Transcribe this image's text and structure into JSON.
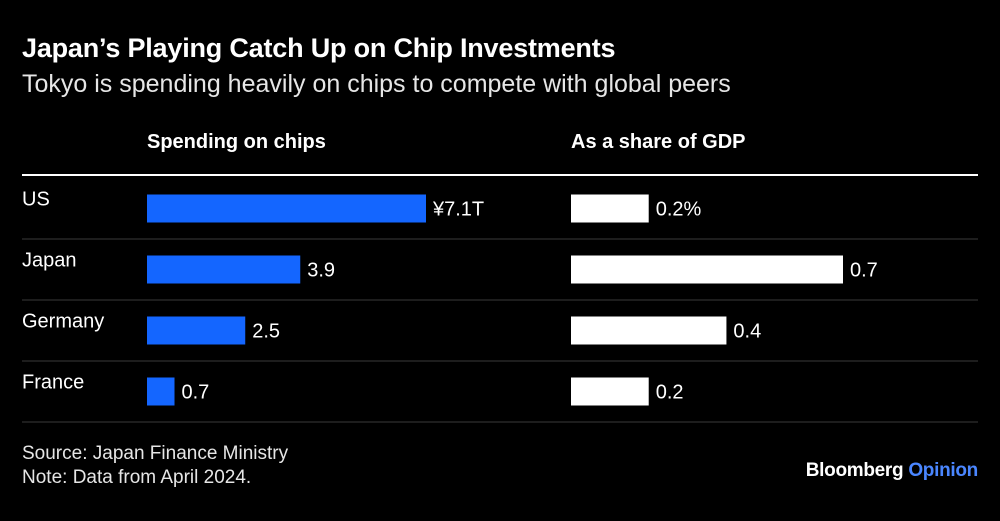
{
  "chart_data": {
    "type": "bar",
    "title": "Japan’s Playing Catch Up on Chip Investments",
    "subtitle": "Tokyo is spending heavily on chips to compete with global peers",
    "categories": [
      "US",
      "Japan",
      "Germany",
      "France"
    ],
    "series": [
      {
        "name": "Spending on chips",
        "values": [
          7.1,
          3.9,
          2.5,
          0.7
        ],
        "labels": [
          "¥7.1T",
          "3.9",
          "2.5",
          "0.7"
        ],
        "unit": "trillion yen",
        "color": "#1466ff",
        "xlim": [
          0,
          7.1
        ]
      },
      {
        "name": "As a share of GDP",
        "values": [
          0.2,
          0.7,
          0.4,
          0.2
        ],
        "labels": [
          "0.2%",
          "0.7",
          "0.4",
          "0.2"
        ],
        "unit": "%",
        "color": "#ffffff",
        "xlim": [
          0,
          0.7
        ]
      }
    ],
    "source": "Source: Japan Finance Ministry",
    "note": "Note: Data from April 2024."
  },
  "branding": {
    "name": "Bloomberg",
    "suffix": "Opinion",
    "accent_color": "#4a86ff"
  },
  "colors": {
    "background": "#000000",
    "rule": "#ffffff",
    "divider": "#3a3a3a"
  }
}
